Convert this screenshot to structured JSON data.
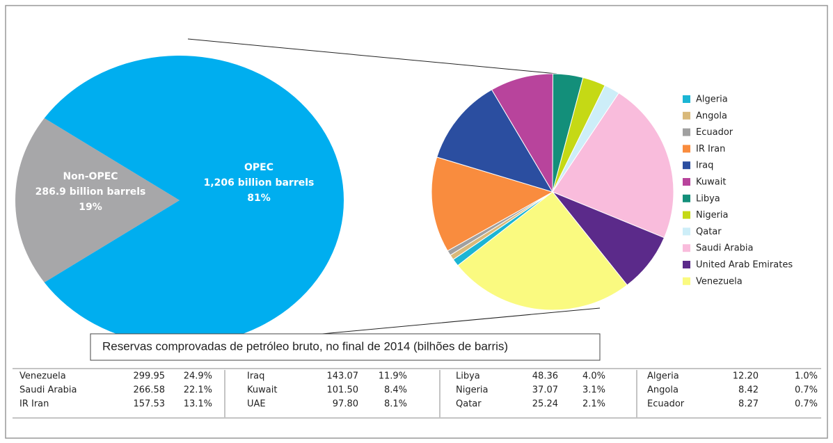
{
  "chart_data": [
    {
      "type": "pie",
      "categories": [
        "Non-OPEC",
        "OPEC"
      ],
      "values": [
        286.9,
        1206
      ],
      "value_labels": [
        "286.9 billion barrels",
        "1,206 billion barrels"
      ],
      "shares": [
        19,
        81
      ],
      "share_labels": [
        "19%",
        "81%"
      ],
      "colors": [
        "#a7a7a9",
        "#00aeef"
      ]
    },
    {
      "type": "pie",
      "categories": [
        "Algeria",
        "Angola",
        "Ecuador",
        "IR Iran",
        "Iraq",
        "Kuwait",
        "Libya",
        "Nigeria",
        "Qatar",
        "Saudi Arabia",
        "United Arab Emirates",
        "Venezuela"
      ],
      "values": [
        12.2,
        8.42,
        8.27,
        157.53,
        143.07,
        101.5,
        48.36,
        37.07,
        25.24,
        266.58,
        97.8,
        299.95
      ],
      "colors": [
        "#1bb5d4",
        "#d9b97a",
        "#a0a0a0",
        "#f98c3e",
        "#2b4ea0",
        "#b8449c",
        "#138f7a",
        "#c5d915",
        "#cdeef8",
        "#f9bcdc",
        "#5b2a8a",
        "#fafa80"
      ],
      "legend": "right"
    }
  ],
  "caption": "Reservas comprovadas de petróleo bruto, no final de 2014 (bilhões de barris)",
  "table": {
    "groups": [
      [
        [
          "Venezuela",
          "299.95",
          "24.9%"
        ],
        [
          "Saudi Arabia",
          "266.58",
          "22.1%"
        ],
        [
          "IR Iran",
          "157.53",
          "13.1%"
        ]
      ],
      [
        [
          "Iraq",
          "143.07",
          "11.9%"
        ],
        [
          "Kuwait",
          "101.50",
          "8.4%"
        ],
        [
          "UAE",
          "97.80",
          "8.1%"
        ]
      ],
      [
        [
          "Libya",
          "48.36",
          "4.0%"
        ],
        [
          "Nigeria",
          "37.07",
          "3.1%"
        ],
        [
          "Qatar",
          "25.24",
          "2.1%"
        ]
      ],
      [
        [
          "Algeria",
          "12.20",
          "1.0%"
        ],
        [
          "Angola",
          "8.42",
          "0.7%"
        ],
        [
          "Ecuador",
          "8.27",
          "0.7%"
        ]
      ]
    ]
  }
}
